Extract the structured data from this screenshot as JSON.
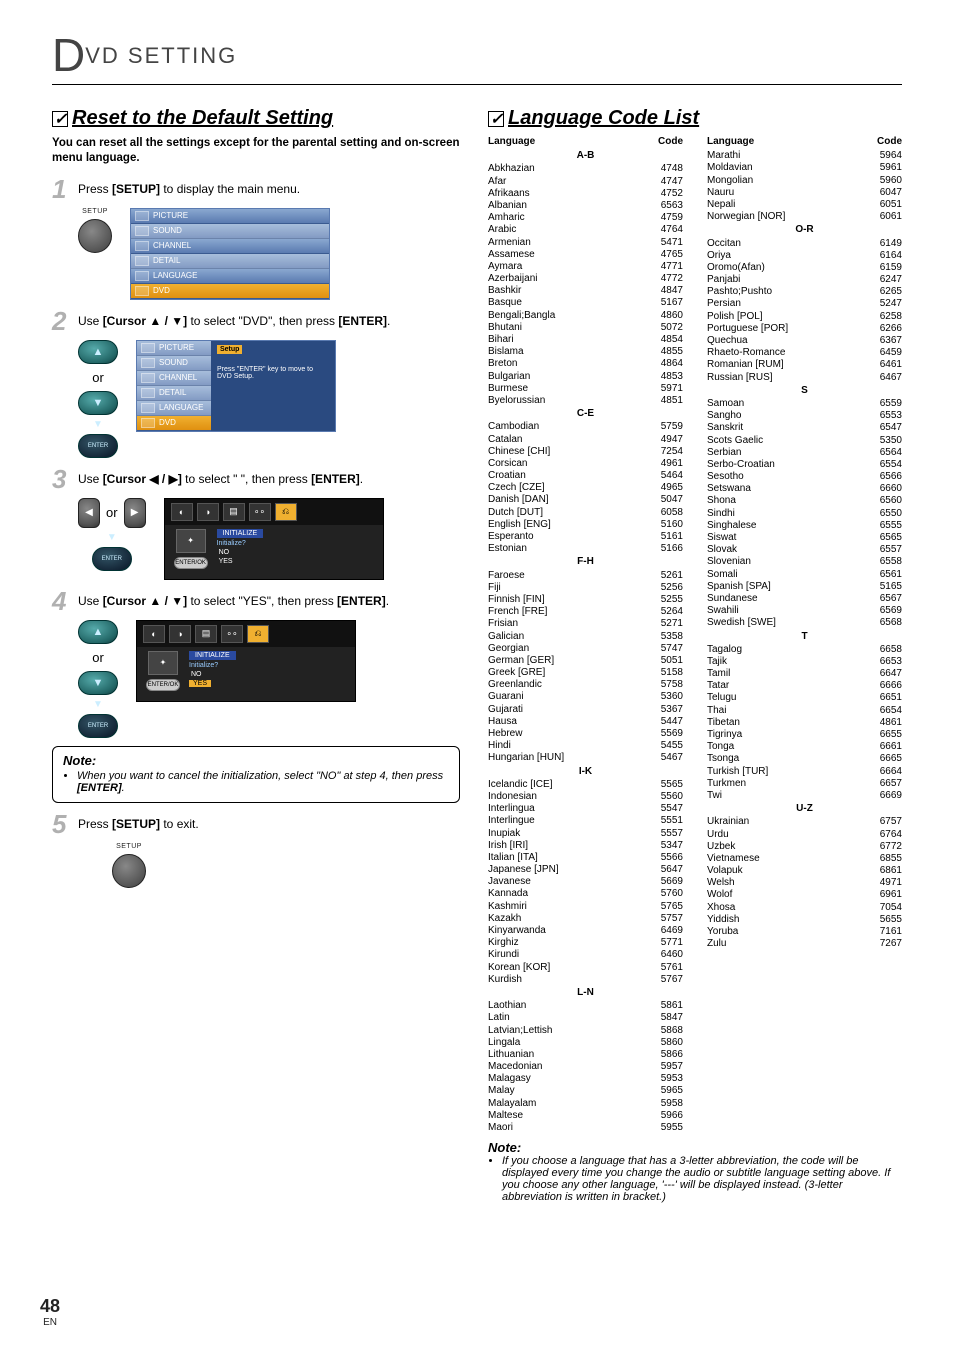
{
  "header": {
    "big_letter": "D",
    "rest": "VD  SETTING"
  },
  "page_number": {
    "num": "48",
    "suffix": "EN"
  },
  "left": {
    "title": "Reset to the Default Setting",
    "intro": "You can reset all the settings except for the parental setting and on-screen menu language.",
    "steps": {
      "s1": {
        "num": "1",
        "text_a": "Press ",
        "bold1": "[SETUP]",
        "text_b": " to display the main menu.",
        "label": "SETUP"
      },
      "s2": {
        "num": "2",
        "text_a": "Use ",
        "bold1": "[Cursor ▲ / ▼]",
        "text_b": " to select \"DVD\", then press ",
        "bold2": "[ENTER]",
        "text_c": ".",
        "or": "or",
        "enter_label": "ENTER",
        "osd_side": [
          "PICTURE",
          "SOUND",
          "CHANNEL",
          "DETAIL",
          "LANGUAGE",
          "DVD"
        ],
        "osd_heading": "Setup",
        "osd_msg": "Press \"ENTER\" key to move to DVD Setup."
      },
      "s3": {
        "num": "3",
        "text_a": "Use ",
        "bold1": "[Cursor ◀ / ▶]",
        "text_b": " to select \"        \", then press ",
        "bold2": "[ENTER]",
        "text_c": ".",
        "or": "or",
        "enter_label": "ENTER",
        "osd_tag": "INITIALIZE",
        "osd_q": "Initialize?",
        "osd_no": "NO",
        "osd_yes": "YES",
        "osd_enter": "ENTER/OK"
      },
      "s4": {
        "num": "4",
        "text_a": "Use ",
        "bold1": "[Cursor ▲ / ▼]",
        "text_b": " to select \"YES\", then press ",
        "bold2": "[ENTER]",
        "text_c": ".",
        "or": "or",
        "enter_label": "ENTER",
        "osd_tag": "INITIALIZE",
        "osd_q": "Initialize?",
        "osd_no": "NO",
        "osd_yes": "YES",
        "osd_enter": "ENTER/OK"
      },
      "s5": {
        "num": "5",
        "text_a": "Press ",
        "bold1": "[SETUP]",
        "text_b": " to exit.",
        "label": "SETUP"
      }
    },
    "note": {
      "title": "Note:",
      "line_a": "When you want to cancel the initialization, select \"NO\" at step 4, then press ",
      "line_b": "[ENTER]",
      "line_c": "."
    }
  },
  "right": {
    "title": "Language Code List",
    "col_head_lang": "Language",
    "col_head_code": "Code",
    "groups_left": [
      {
        "label": "A-B",
        "items": [
          [
            "Abkhazian",
            "4748"
          ],
          [
            "Afar",
            "4747"
          ],
          [
            "Afrikaans",
            "4752"
          ],
          [
            "Albanian",
            "6563"
          ],
          [
            "Amharic",
            "4759"
          ],
          [
            "Arabic",
            "4764"
          ],
          [
            "Armenian",
            "5471"
          ],
          [
            "Assamese",
            "4765"
          ],
          [
            "Aymara",
            "4771"
          ],
          [
            "Azerbaijani",
            "4772"
          ],
          [
            "Bashkir",
            "4847"
          ],
          [
            "Basque",
            "5167"
          ],
          [
            "Bengali;Bangla",
            "4860"
          ],
          [
            "Bhutani",
            "5072"
          ],
          [
            "Bihari",
            "4854"
          ],
          [
            "Bislama",
            "4855"
          ],
          [
            "Breton",
            "4864"
          ],
          [
            "Bulgarian",
            "4853"
          ],
          [
            "Burmese",
            "5971"
          ],
          [
            "Byelorussian",
            "4851"
          ]
        ]
      },
      {
        "label": "C-E",
        "items": [
          [
            "Cambodian",
            "5759"
          ],
          [
            "Catalan",
            "4947"
          ],
          [
            "Chinese [CHI]",
            "7254"
          ],
          [
            "Corsican",
            "4961"
          ],
          [
            "Croatian",
            "5464"
          ],
          [
            "Czech [CZE]",
            "4965"
          ],
          [
            "Danish [DAN]",
            "5047"
          ],
          [
            "Dutch [DUT]",
            "6058"
          ],
          [
            "English [ENG]",
            "5160"
          ],
          [
            "Esperanto",
            "5161"
          ],
          [
            "Estonian",
            "5166"
          ]
        ]
      },
      {
        "label": "F-H",
        "items": [
          [
            "Faroese",
            "5261"
          ],
          [
            "Fiji",
            "5256"
          ],
          [
            "Finnish [FIN]",
            "5255"
          ],
          [
            "French [FRE]",
            "5264"
          ],
          [
            "Frisian",
            "5271"
          ],
          [
            "Galician",
            "5358"
          ],
          [
            "Georgian",
            "5747"
          ],
          [
            "German [GER]",
            "5051"
          ],
          [
            "Greek [GRE]",
            "5158"
          ],
          [
            "Greenlandic",
            "5758"
          ],
          [
            "Guarani",
            "5360"
          ],
          [
            "Gujarati",
            "5367"
          ],
          [
            "Hausa",
            "5447"
          ],
          [
            "Hebrew",
            "5569"
          ],
          [
            "Hindi",
            "5455"
          ],
          [
            "Hungarian [HUN]",
            "5467"
          ]
        ]
      },
      {
        "label": "I-K",
        "items": [
          [
            "Icelandic [ICE]",
            "5565"
          ],
          [
            "Indonesian",
            "5560"
          ],
          [
            "Interlingua",
            "5547"
          ],
          [
            "Interlingue",
            "5551"
          ],
          [
            "Inupiak",
            "5557"
          ],
          [
            "Irish [IRI]",
            "5347"
          ],
          [
            "Italian [ITA]",
            "5566"
          ],
          [
            "Japanese [JPN]",
            "5647"
          ],
          [
            "Javanese",
            "5669"
          ],
          [
            "Kannada",
            "5760"
          ],
          [
            "Kashmiri",
            "5765"
          ],
          [
            "Kazakh",
            "5757"
          ],
          [
            "Kinyarwanda",
            "6469"
          ],
          [
            "Kirghiz",
            "5771"
          ],
          [
            "Kirundi",
            "6460"
          ],
          [
            "Korean [KOR]",
            "5761"
          ],
          [
            "Kurdish",
            "5767"
          ]
        ]
      },
      {
        "label": "L-N",
        "items": [
          [
            "Laothian",
            "5861"
          ],
          [
            "Latin",
            "5847"
          ],
          [
            "Latvian;Lettish",
            "5868"
          ],
          [
            "Lingala",
            "5860"
          ],
          [
            "Lithuanian",
            "5866"
          ],
          [
            "Macedonian",
            "5957"
          ],
          [
            "Malagasy",
            "5953"
          ],
          [
            "Malay",
            "5965"
          ],
          [
            "Malayalam",
            "5958"
          ],
          [
            "Maltese",
            "5966"
          ],
          [
            "Maori",
            "5955"
          ]
        ]
      }
    ],
    "groups_right": [
      {
        "label": "",
        "items": [
          [
            "Marathi",
            "5964"
          ],
          [
            "Moldavian",
            "5961"
          ],
          [
            "Mongolian",
            "5960"
          ],
          [
            "Nauru",
            "6047"
          ],
          [
            "Nepali",
            "6051"
          ],
          [
            "Norwegian [NOR]",
            "6061"
          ]
        ]
      },
      {
        "label": "O-R",
        "items": [
          [
            "Occitan",
            "6149"
          ],
          [
            "Oriya",
            "6164"
          ],
          [
            "Oromo(Afan)",
            "6159"
          ],
          [
            "Panjabi",
            "6247"
          ],
          [
            "Pashto;Pushto",
            "6265"
          ],
          [
            "Persian",
            "5247"
          ],
          [
            "Polish [POL]",
            "6258"
          ],
          [
            "Portuguese [POR]",
            "6266"
          ],
          [
            "Quechua",
            "6367"
          ],
          [
            "Rhaeto-Romance",
            "6459"
          ],
          [
            "Romanian [RUM]",
            "6461"
          ],
          [
            "Russian [RUS]",
            "6467"
          ]
        ]
      },
      {
        "label": "S",
        "items": [
          [
            "Samoan",
            "6559"
          ],
          [
            "Sangho",
            "6553"
          ],
          [
            "Sanskrit",
            "6547"
          ],
          [
            "Scots Gaelic",
            "5350"
          ],
          [
            "Serbian",
            "6564"
          ],
          [
            "Serbo-Croatian",
            "6554"
          ],
          [
            "Sesotho",
            "6566"
          ],
          [
            "Setswana",
            "6660"
          ],
          [
            "Shona",
            "6560"
          ],
          [
            "Sindhi",
            "6550"
          ],
          [
            "Singhalese",
            "6555"
          ],
          [
            "Siswat",
            "6565"
          ],
          [
            "Slovak",
            "6557"
          ],
          [
            "Slovenian",
            "6558"
          ],
          [
            "Somali",
            "6561"
          ],
          [
            "Spanish [SPA]",
            "5165"
          ],
          [
            "Sundanese",
            "6567"
          ],
          [
            "Swahili",
            "6569"
          ],
          [
            "Swedish [SWE]",
            "6568"
          ]
        ]
      },
      {
        "label": "T",
        "items": [
          [
            "Tagalog",
            "6658"
          ],
          [
            "Tajik",
            "6653"
          ],
          [
            "Tamil",
            "6647"
          ],
          [
            "Tatar",
            "6666"
          ],
          [
            "Telugu",
            "6651"
          ],
          [
            "Thai",
            "6654"
          ],
          [
            "Tibetan",
            "4861"
          ],
          [
            "Tigrinya",
            "6655"
          ],
          [
            "Tonga",
            "6661"
          ],
          [
            "Tsonga",
            "6665"
          ],
          [
            "Turkish [TUR]",
            "6664"
          ],
          [
            "Turkmen",
            "6657"
          ],
          [
            "Twi",
            "6669"
          ]
        ]
      },
      {
        "label": "U-Z",
        "items": [
          [
            "Ukrainian",
            "6757"
          ],
          [
            "Urdu",
            "6764"
          ],
          [
            "Uzbek",
            "6772"
          ],
          [
            "Vietnamese",
            "6855"
          ],
          [
            "Volapuk",
            "6861"
          ],
          [
            "Welsh",
            "4971"
          ],
          [
            "Wolof",
            "6961"
          ],
          [
            "Xhosa",
            "7054"
          ],
          [
            "Yiddish",
            "5655"
          ],
          [
            "Yoruba",
            "7161"
          ],
          [
            "Zulu",
            "7267"
          ]
        ]
      }
    ],
    "note": {
      "title": "Note:",
      "text": "If you choose a language that has a 3-letter abbreviation, the code will be displayed every time you change the audio or subtitle language setting above. If you choose any other language, '---' will be displayed instead. (3-letter abbreviation is written in bracket.)"
    }
  }
}
